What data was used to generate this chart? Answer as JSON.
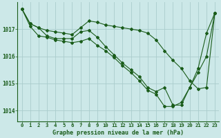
{
  "title": "Graphe pression niveau de la mer (hPa)",
  "background_color": "#cce8e8",
  "grid_color": "#aacccc",
  "line_color": "#1a5c1a",
  "xlim": [
    -0.5,
    23.5
  ],
  "ylim": [
    1013.6,
    1018.0
  ],
  "yticks": [
    1014,
    1015,
    1016,
    1017
  ],
  "xticks": [
    0,
    1,
    2,
    3,
    4,
    5,
    6,
    7,
    8,
    9,
    10,
    11,
    12,
    13,
    14,
    15,
    16,
    17,
    18,
    19,
    20,
    21,
    22,
    23
  ],
  "series": [
    [
      1017.75,
      1017.2,
      1017.05,
      1016.95,
      1016.9,
      1016.85,
      1016.8,
      1017.05,
      1017.3,
      1017.25,
      1017.15,
      1017.1,
      1017.05,
      1017.0,
      1016.95,
      1016.85,
      1016.6,
      1016.2,
      1015.85,
      1015.55,
      1015.1,
      1014.8,
      1014.85,
      1017.6
    ],
    [
      1017.75,
      1017.2,
      1017.05,
      1016.75,
      1016.65,
      1016.65,
      1016.65,
      1016.9,
      1016.95,
      1016.7,
      1016.35,
      1016.05,
      1015.75,
      1015.5,
      1015.25,
      1014.85,
      1014.7,
      1014.85,
      1014.2,
      1014.2,
      1014.85,
      1015.55,
      1016.85,
      1017.6
    ],
    [
      1017.75,
      1017.1,
      1016.75,
      1016.7,
      1016.6,
      1016.55,
      1016.5,
      1016.55,
      1016.65,
      1016.4,
      1016.2,
      1015.95,
      1015.65,
      1015.4,
      1015.1,
      1014.75,
      1014.6,
      1014.15,
      1014.15,
      1014.3,
      1014.85,
      1015.4,
      1016.0,
      1017.6
    ]
  ]
}
